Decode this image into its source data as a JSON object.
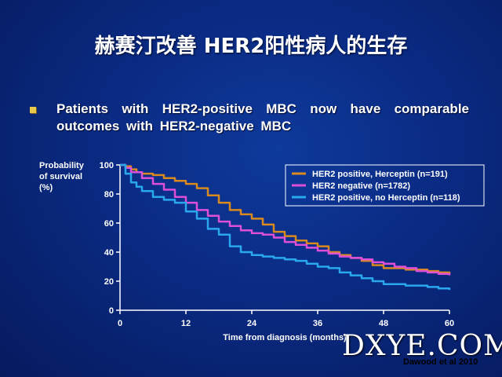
{
  "slide": {
    "title": "赫赛汀改善 HER2阳性病人的生存",
    "bullet": "Patients with HER2-positive MBC now have comparable outcomes with HER2-negative MBC",
    "watermark": "DXYE.COM",
    "citation": "Dawood et al 2010"
  },
  "colors": {
    "background": "#0a2a82",
    "herceptin": "#d98a1e",
    "negative": "#dd4fd6",
    "no_herceptin": "#2aa8ee",
    "bullet": "#e8c84a"
  },
  "chart_data": {
    "type": "line",
    "ylabel": "Probability of survival (%)",
    "xlabel": "Time from diagnosis (months)",
    "xlim": [
      0,
      60
    ],
    "ylim": [
      0,
      100
    ],
    "x_ticks": [
      0,
      12,
      24,
      36,
      48,
      60
    ],
    "y_ticks": [
      0,
      20,
      40,
      60,
      80,
      100
    ],
    "legend_position": "top-right",
    "grid": false,
    "series": [
      {
        "name": "HER2 positive, Herceptin (n=191)",
        "color": "#d98a1e",
        "points": [
          [
            0,
            100
          ],
          [
            1,
            99
          ],
          [
            2,
            97
          ],
          [
            3,
            95
          ],
          [
            4,
            94
          ],
          [
            6,
            93
          ],
          [
            8,
            91
          ],
          [
            10,
            89
          ],
          [
            12,
            87
          ],
          [
            14,
            84
          ],
          [
            16,
            79
          ],
          [
            18,
            74
          ],
          [
            20,
            69
          ],
          [
            22,
            66
          ],
          [
            24,
            63
          ],
          [
            26,
            59
          ],
          [
            28,
            54
          ],
          [
            30,
            51
          ],
          [
            32,
            48
          ],
          [
            34,
            46
          ],
          [
            36,
            44
          ],
          [
            38,
            40
          ],
          [
            40,
            38
          ],
          [
            42,
            36
          ],
          [
            44,
            34
          ],
          [
            46,
            31
          ],
          [
            48,
            29
          ],
          [
            52,
            28
          ],
          [
            56,
            27
          ],
          [
            58,
            26
          ],
          [
            60,
            25
          ]
        ]
      },
      {
        "name": "HER2 negative (n=1782)",
        "color": "#dd4fd6",
        "points": [
          [
            0,
            100
          ],
          [
            1,
            98
          ],
          [
            2,
            95
          ],
          [
            4,
            91
          ],
          [
            6,
            87
          ],
          [
            8,
            83
          ],
          [
            10,
            78
          ],
          [
            12,
            74
          ],
          [
            14,
            69
          ],
          [
            16,
            65
          ],
          [
            18,
            61
          ],
          [
            20,
            58
          ],
          [
            22,
            55
          ],
          [
            24,
            53
          ],
          [
            26,
            52
          ],
          [
            28,
            50
          ],
          [
            30,
            47
          ],
          [
            32,
            45
          ],
          [
            34,
            43
          ],
          [
            36,
            41
          ],
          [
            38,
            39
          ],
          [
            40,
            37
          ],
          [
            42,
            36
          ],
          [
            44,
            35
          ],
          [
            46,
            33
          ],
          [
            48,
            32
          ],
          [
            50,
            30
          ],
          [
            52,
            29
          ],
          [
            54,
            27
          ],
          [
            56,
            26
          ],
          [
            58,
            25
          ],
          [
            60,
            24
          ]
        ]
      },
      {
        "name": "HER2 positive, no Herceptin (n=118)",
        "color": "#2aa8ee",
        "points": [
          [
            0,
            100
          ],
          [
            1,
            94
          ],
          [
            2,
            88
          ],
          [
            3,
            85
          ],
          [
            4,
            82
          ],
          [
            6,
            78
          ],
          [
            8,
            76
          ],
          [
            10,
            74
          ],
          [
            12,
            68
          ],
          [
            14,
            63
          ],
          [
            16,
            56
          ],
          [
            18,
            52
          ],
          [
            20,
            44
          ],
          [
            22,
            40
          ],
          [
            24,
            38
          ],
          [
            26,
            37
          ],
          [
            28,
            36
          ],
          [
            30,
            35
          ],
          [
            32,
            34
          ],
          [
            34,
            32
          ],
          [
            36,
            30
          ],
          [
            38,
            29
          ],
          [
            40,
            26
          ],
          [
            42,
            24
          ],
          [
            44,
            22
          ],
          [
            46,
            20
          ],
          [
            48,
            18
          ],
          [
            52,
            17
          ],
          [
            56,
            16
          ],
          [
            58,
            15
          ],
          [
            60,
            14
          ]
        ]
      }
    ]
  }
}
